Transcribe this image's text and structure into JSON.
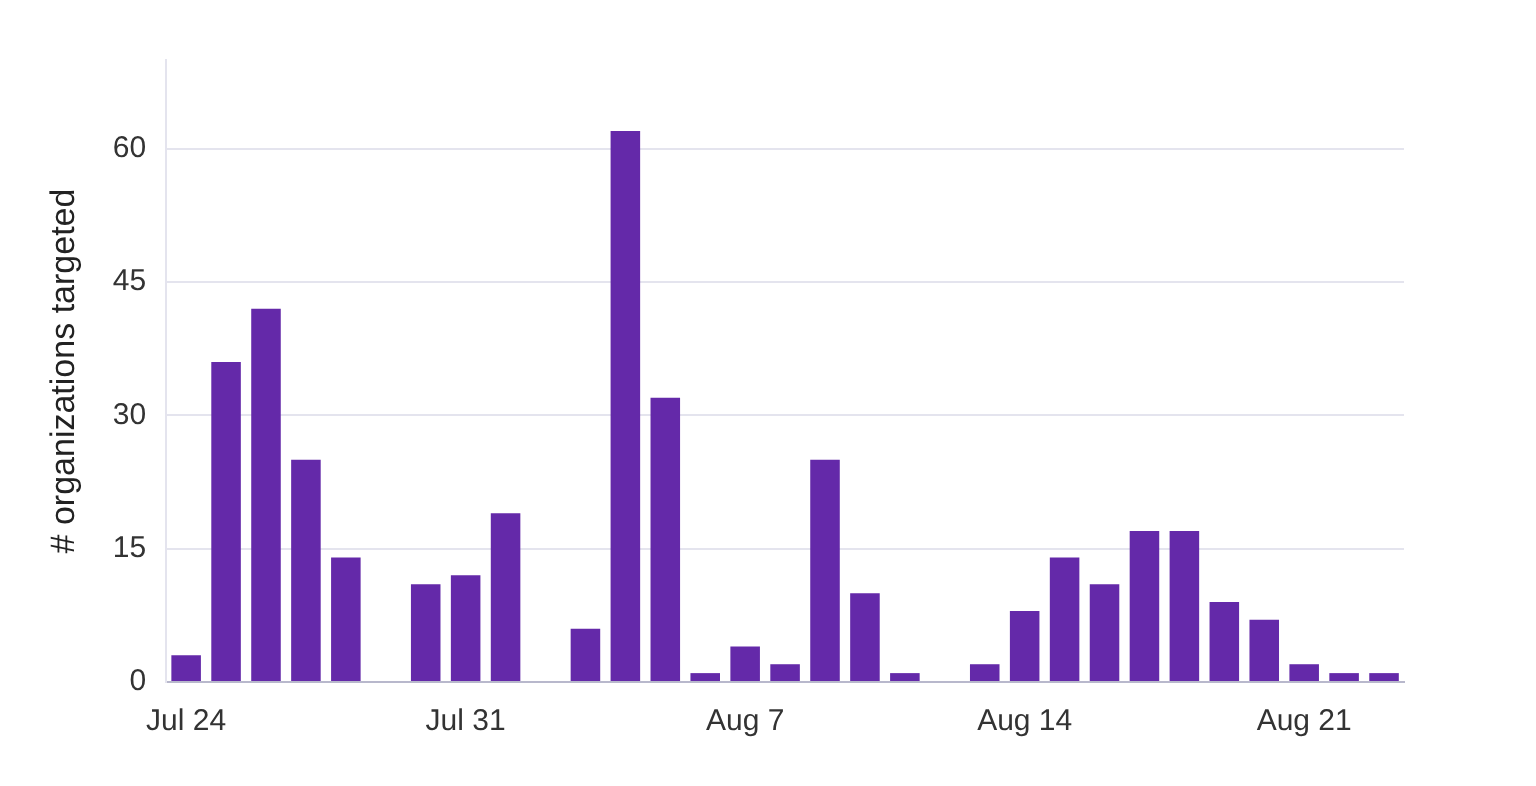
{
  "chart_data": {
    "type": "bar",
    "ylabel": "# organizations targeted",
    "categories": [
      "Jul 24",
      null,
      null,
      null,
      null,
      null,
      null,
      "Jul 31",
      null,
      null,
      null,
      null,
      null,
      null,
      "Aug 7",
      null,
      null,
      null,
      null,
      null,
      null,
      "Aug 14",
      null,
      null,
      null,
      null,
      null,
      null,
      "Aug 21",
      null,
      null
    ],
    "values": [
      3,
      36,
      42,
      25,
      14,
      null,
      11,
      12,
      19,
      null,
      6,
      62,
      32,
      1,
      4,
      2,
      25,
      10,
      1,
      null,
      2,
      8,
      14,
      11,
      17,
      17,
      9,
      7,
      2,
      1,
      1
    ],
    "color": "#6429a9",
    "ylim": [
      0,
      70
    ],
    "yticks": [
      0,
      15,
      30,
      45,
      60
    ],
    "grid": "y"
  }
}
